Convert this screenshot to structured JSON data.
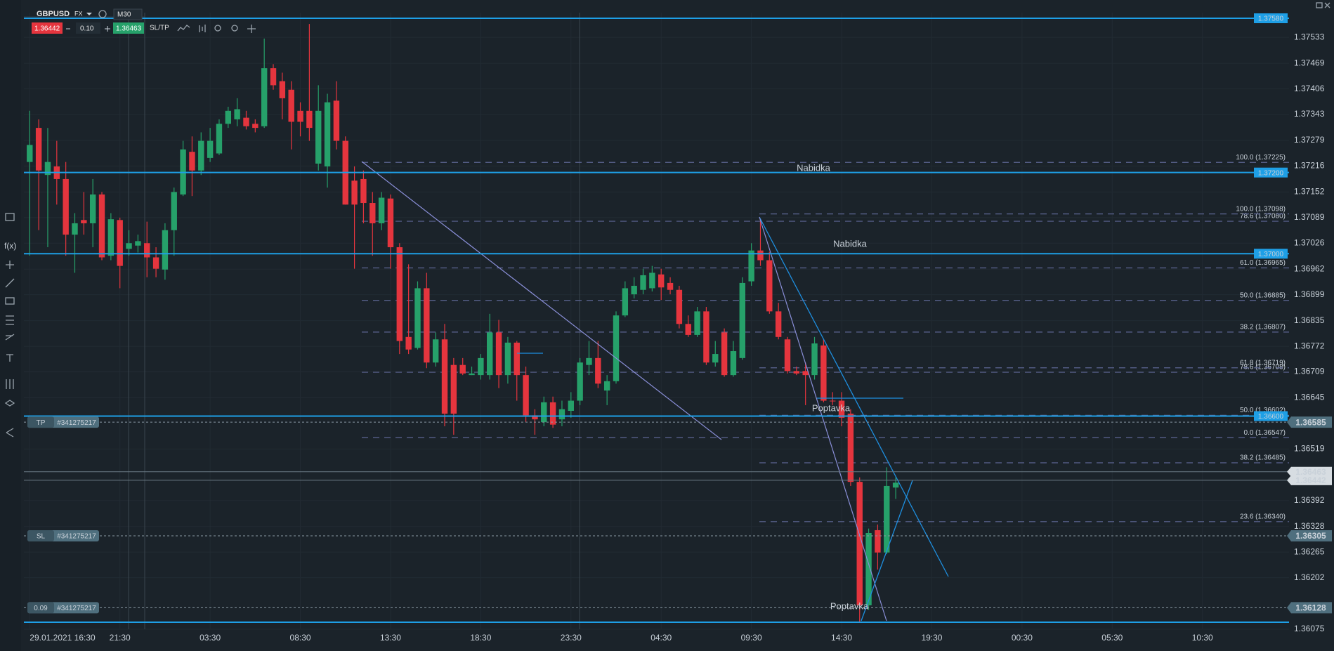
{
  "toolbar": {
    "symbol": "GBPUSD",
    "market": "FX",
    "timeframe": "M30",
    "sell": "1.36442",
    "volume": "0.10",
    "buy": "1.36463",
    "sltp": "SL/TP"
  },
  "sidebar": {
    "fx": "f(x)"
  },
  "chart_data": {
    "type": "candlestick",
    "up_color": "#26a16a",
    "down_color": "#e5353e",
    "ylim": [
      1.36075,
      1.37625
    ],
    "yticks": [
      1.37533,
      1.37469,
      1.37406,
      1.37343,
      1.37279,
      1.37216,
      1.37152,
      1.37089,
      1.37026,
      1.36962,
      1.36899,
      1.36835,
      1.36772,
      1.36709,
      1.36645,
      1.36519,
      1.36392,
      1.36328,
      1.36265,
      1.36202,
      1.36075
    ],
    "xlim": [
      -0.1,
      139.6
    ],
    "xticks": [
      {
        "value": 0,
        "label": "29.01.2021 16:30"
      },
      {
        "value": 10,
        "label": "21:30"
      },
      {
        "value": 20,
        "label": "03:30"
      },
      {
        "value": 30,
        "label": "08:30"
      },
      {
        "value": 40,
        "label": "13:30"
      },
      {
        "value": 50,
        "label": "18:30"
      },
      {
        "value": 60,
        "label": "23:30"
      },
      {
        "value": 70,
        "label": "04:30"
      },
      {
        "value": 80,
        "label": "09:30"
      },
      {
        "value": 90,
        "label": "14:30"
      },
      {
        "value": 100,
        "label": "19:30"
      },
      {
        "value": 110,
        "label": "00:30"
      },
      {
        "value": 120,
        "label": "05:30"
      },
      {
        "value": 130,
        "label": "10:30"
      }
    ],
    "candles": {
      "open": [
        1.37226,
        1.3731,
        1.37194,
        1.37215,
        1.37184,
        1.37047,
        1.37083,
        1.37075,
        1.37146,
        1.36995,
        1.37083,
        1.37012,
        1.3702,
        1.37026,
        1.36991,
        1.36961,
        1.37058,
        1.37146,
        1.37251,
        1.37205,
        1.37236,
        1.37247,
        1.3732,
        1.37331,
        1.37335,
        1.3732,
        1.37314,
        1.37457,
        1.37425,
        1.37404,
        1.37352,
        1.37352,
        1.37222,
        1.37215,
        1.37377,
        1.37278,
        1.3718,
        1.37184,
        1.37125,
        1.37075,
        1.37136,
        1.37016,
        1.36795,
        1.36768,
        1.36915,
        1.36732,
        1.36789,
        1.36726,
        1.36726,
        1.36701,
        1.36701,
        1.36701,
        1.36806,
        1.36701,
        1.36781,
        1.36701,
        1.36602,
        1.36585,
        1.36634,
        1.36592,
        1.36613,
        1.36638,
        1.36726,
        1.36743,
        1.36663,
        1.36686,
        1.36848,
        1.369,
        1.36911,
        1.36915,
        1.36949,
        1.36928,
        1.36911,
        1.36827,
        1.368,
        1.36858,
        1.36732,
        1.36806,
        1.36701,
        1.36743,
        1.36932,
        1.37008,
        1.36984,
        1.36858,
        1.36789,
        1.36711,
        1.36711,
        1.36701,
        1.36774,
        1.36638,
        1.36638,
        1.36606,
        1.36438,
        1.36134,
        1.36319,
        1.36264,
        1.36424
      ],
      "high": [
        1.37352,
        1.37331,
        1.3731,
        1.37278,
        1.37226,
        1.371,
        1.37152,
        1.37184,
        1.37152,
        1.371,
        1.37089,
        1.37058,
        1.37047,
        1.37079,
        1.37016,
        1.37075,
        1.37163,
        1.37278,
        1.37289,
        1.37299,
        1.3731,
        1.37331,
        1.37362,
        1.37383,
        1.37352,
        1.37331,
        1.3753,
        1.37467,
        1.37446,
        1.37425,
        1.37373,
        1.37566,
        1.37415,
        1.37394,
        1.37425,
        1.37289,
        1.37215,
        1.37205,
        1.37152,
        1.37152,
        1.37146,
        1.37026,
        1.36974,
        1.36932,
        1.36953,
        1.36806,
        1.36827,
        1.36743,
        1.36743,
        1.36722,
        1.36753,
        1.36852,
        1.36837,
        1.36795,
        1.36785,
        1.36722,
        1.36617,
        1.36648,
        1.36648,
        1.36638,
        1.36659,
        1.36743,
        1.36785,
        1.36785,
        1.36701,
        1.36858,
        1.36932,
        1.36942,
        1.36963,
        1.3697,
        1.36963,
        1.36942,
        1.36921,
        1.36848,
        1.36869,
        1.36869,
        1.36785,
        1.36816,
        1.36785,
        1.36942,
        1.37026,
        1.37083,
        1.37005,
        1.36879,
        1.36795,
        1.36722,
        1.36732,
        1.36795,
        1.36789,
        1.36659,
        1.36659,
        1.36617,
        1.36449,
        1.36323,
        1.36333,
        1.36474,
        1.36449
      ],
      "low": [
        1.36995,
        1.37058,
        1.37016,
        1.37121,
        1.36995,
        1.36953,
        1.37047,
        1.37016,
        1.36984,
        1.36984,
        1.36915,
        1.36995,
        1.37003,
        1.36942,
        1.36942,
        1.36936,
        1.36995,
        1.37142,
        1.37142,
        1.37194,
        1.37226,
        1.37243,
        1.3731,
        1.37314,
        1.37306,
        1.37299,
        1.3731,
        1.37404,
        1.37331,
        1.37257,
        1.37289,
        1.37278,
        1.37205,
        1.37163,
        1.37257,
        1.37121,
        1.36963,
        1.37075,
        1.36995,
        1.37058,
        1.36963,
        1.36753,
        1.36753,
        1.36764,
        1.36718,
        1.36722,
        1.36575,
        1.36554,
        1.36701,
        1.36701,
        1.3669,
        1.3669,
        1.36669,
        1.3668,
        1.36638,
        1.36585,
        1.36554,
        1.36575,
        1.36571,
        1.36575,
        1.36596,
        1.36627,
        1.36701,
        1.36669,
        1.36627,
        1.3668,
        1.36844,
        1.3689,
        1.369,
        1.36907,
        1.36886,
        1.369,
        1.36816,
        1.36795,
        1.36795,
        1.36726,
        1.36722,
        1.36697,
        1.36697,
        1.36739,
        1.36921,
        1.3697,
        1.36852,
        1.36789,
        1.36705,
        1.36701,
        1.36627,
        1.3669,
        1.36634,
        1.36627,
        1.36575,
        1.36428,
        1.36092,
        1.36123,
        1.36222,
        1.3626,
        1.36396
      ],
      "close": [
        1.37268,
        1.37205,
        1.37226,
        1.37184,
        1.37047,
        1.37075,
        1.37075,
        1.37146,
        1.36991,
        1.37085,
        1.3697,
        1.37026,
        1.37031,
        1.36991,
        1.36963,
        1.37058,
        1.37152,
        1.37257,
        1.37205,
        1.37278,
        1.37278,
        1.3732,
        1.37352,
        1.37356,
        1.37314,
        1.3731,
        1.37457,
        1.37415,
        1.37383,
        1.37325,
        1.37325,
        1.3731,
        1.37352,
        1.37373,
        1.37278,
        1.37121,
        1.37121,
        1.37125,
        1.37075,
        1.37138,
        1.37016,
        1.36785,
        1.36764,
        1.36915,
        1.36732,
        1.36789,
        1.36606,
        1.36606,
        1.36705,
        1.36705,
        1.36743,
        1.36806,
        1.36701,
        1.36781,
        1.36701,
        1.36602,
        1.36592,
        1.36634,
        1.36579,
        1.36617,
        1.36638,
        1.36732,
        1.36743,
        1.3668,
        1.36686,
        1.36848,
        1.36915,
        1.36921,
        1.36947,
        1.36953,
        1.36917,
        1.36911,
        1.36827,
        1.368,
        1.36858,
        1.36732,
        1.36753,
        1.36701,
        1.3676,
        1.36928,
        1.37008,
        1.36984,
        1.36858,
        1.36795,
        1.36711,
        1.36705,
        1.36701,
        1.36779,
        1.36638,
        1.36638,
        1.36596,
        1.36438,
        1.36134,
        1.36312,
        1.36264,
        1.36428,
        1.36436
      ]
    },
    "level_color": "#1e9fe6",
    "levels": [
      {
        "value": 1.3758,
        "label": "1.37580"
      },
      {
        "value": 1.372,
        "label": "1.37200"
      },
      {
        "value": 1.37,
        "label": "1.37000"
      },
      {
        "value": 1.366,
        "label": "1.36600"
      }
    ],
    "fib_sets": [
      {
        "levels": [
          {
            "value": 1.37225,
            "label": "100.0 (1.37225)"
          },
          {
            "value": 1.3708,
            "label": "78.6 (1.37080)"
          },
          {
            "value": 1.36965,
            "label": "61.0 (1.36965)"
          },
          {
            "value": 1.36885,
            "label": "50.0 (1.36885)"
          },
          {
            "value": 1.36807,
            "label": "38.2 (1.36807)"
          },
          {
            "value": 1.36708,
            "label": "78.6 (1.36708)"
          },
          {
            "value": 1.36547,
            "label": "0.0 (1.36547)"
          }
        ]
      },
      {
        "levels": [
          {
            "value": 1.37098,
            "label": "100.0 (1.37098)"
          },
          {
            "value": 1.36719,
            "label": "61.8 (1.36719)"
          },
          {
            "value": 1.36602,
            "label": "50.0 (1.36602)"
          },
          {
            "value": 1.36485,
            "label": "38.2 (1.36485)"
          },
          {
            "value": 1.3634,
            "label": "23.6 (1.36340)"
          }
        ]
      }
    ],
    "annotations": [
      "Nabidka",
      "Nabidka",
      "Poptavka",
      "Poptavka"
    ],
    "orders": [
      {
        "tag": "TP",
        "id": "#341275217",
        "value": 1.36585
      },
      {
        "tag": "SL",
        "id": "#341275217",
        "value": 1.36305
      },
      {
        "tag": "0.09",
        "id": "#341275217",
        "value": 1.36128
      }
    ],
    "quotes": [
      1.36463,
      1.36442
    ]
  }
}
